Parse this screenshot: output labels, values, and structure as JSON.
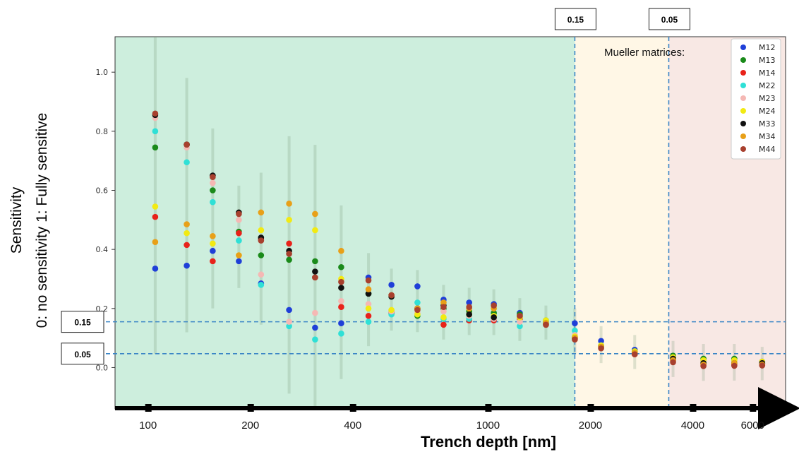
{
  "chart_data": {
    "type": "scatter",
    "xlabel": "Trench depth [nm]",
    "ylabel_line1": "Sensitivity",
    "ylabel_line2": "0: no sensitivity  1: Fully sensitive",
    "x_scale": "log",
    "xlim": [
      80,
      7500
    ],
    "ylim": [
      -0.14,
      1.12
    ],
    "y_ticks": [
      "0.0",
      "0.2",
      "0.4",
      "0.6",
      "0.8",
      "1.0"
    ],
    "x_ticks": [
      "100",
      "200",
      "400",
      "1000",
      "2000",
      "4000",
      "6000"
    ],
    "legend_title": "Mueller matrices:",
    "legend_position": "top-right",
    "regions": [
      {
        "from": 80,
        "to": 1800,
        "color": "#cdeedd"
      },
      {
        "from": 1800,
        "to": 3400,
        "color": "#fff7e6"
      },
      {
        "from": 3400,
        "to": 7500,
        "color": "#f8e8e4"
      }
    ],
    "thresholds": {
      "horizontal": [
        {
          "label": "0.15",
          "y": 0.155
        },
        {
          "label": "0.05",
          "y": 0.047
        }
      ],
      "vertical": [
        {
          "label": "0.15",
          "x": 1800
        },
        {
          "label": "0.05",
          "x": 3400
        }
      ]
    },
    "x": [
      105,
      130,
      155,
      185,
      215,
      260,
      310,
      370,
      445,
      520,
      620,
      740,
      880,
      1040,
      1240,
      1480,
      1800,
      2150,
      2700,
      3500,
      4300,
      5300,
      6400
    ],
    "series": [
      {
        "name": "M12",
        "color": "#1f3fd8",
        "values": [
          0.335,
          0.345,
          0.395,
          0.36,
          0.285,
          0.195,
          0.135,
          0.15,
          0.305,
          0.28,
          0.275,
          0.23,
          0.22,
          0.215,
          0.185,
          0.16,
          0.15,
          0.09,
          0.06,
          0.035,
          0.025,
          0.025,
          0.02
        ]
      },
      {
        "name": "M13",
        "color": "#1a8a1a",
        "values": [
          0.745,
          0.755,
          0.6,
          0.46,
          0.38,
          0.365,
          0.36,
          0.34,
          0.25,
          0.19,
          0.175,
          0.2,
          0.19,
          0.185,
          0.18,
          0.155,
          0.1,
          0.075,
          0.055,
          0.04,
          0.03,
          0.03,
          0.015
        ]
      },
      {
        "name": "M14",
        "color": "#e8221a",
        "values": [
          0.51,
          0.415,
          0.36,
          0.455,
          0.435,
          0.42,
          0.305,
          0.205,
          0.175,
          0.185,
          0.2,
          0.145,
          0.16,
          0.16,
          0.165,
          0.145,
          0.1,
          0.07,
          0.045,
          0.025,
          0.01,
          0.01,
          0.01
        ]
      },
      {
        "name": "M22",
        "color": "#2fe0d6",
        "values": [
          0.8,
          0.695,
          0.56,
          0.43,
          0.28,
          0.14,
          0.095,
          0.115,
          0.155,
          0.18,
          0.22,
          0.165,
          0.165,
          0.165,
          0.14,
          0.16,
          0.125,
          0.075,
          0.05,
          0.03,
          0.02,
          0.02,
          0.015
        ]
      },
      {
        "name": "M23",
        "color": "#f5b8b4",
        "values": [
          0.845,
          0.745,
          0.625,
          0.5,
          0.315,
          0.155,
          0.185,
          0.225,
          0.215,
          0.19,
          0.185,
          0.19,
          0.175,
          0.165,
          0.155,
          0.155,
          0.11,
          0.07,
          0.05,
          0.03,
          0.02,
          0.02,
          0.015
        ]
      },
      {
        "name": "M24",
        "color": "#f2ea12",
        "values": [
          0.545,
          0.455,
          0.42,
          0.38,
          0.465,
          0.5,
          0.465,
          0.3,
          0.2,
          0.195,
          0.18,
          0.17,
          0.18,
          0.175,
          0.17,
          0.16,
          0.105,
          0.075,
          0.055,
          0.035,
          0.025,
          0.025,
          0.02
        ]
      },
      {
        "name": "M33",
        "color": "#111111",
        "values": [
          0.855,
          0.755,
          0.65,
          0.525,
          0.44,
          0.395,
          0.325,
          0.27,
          0.25,
          0.24,
          0.2,
          0.21,
          0.18,
          0.17,
          0.175,
          0.15,
          0.1,
          0.07,
          0.05,
          0.03,
          0.015,
          0.015,
          0.015
        ]
      },
      {
        "name": "M34",
        "color": "#e8a018",
        "values": [
          0.425,
          0.485,
          0.445,
          0.38,
          0.525,
          0.555,
          0.52,
          0.395,
          0.265,
          0.245,
          0.2,
          0.22,
          0.2,
          0.2,
          0.175,
          0.15,
          0.1,
          0.07,
          0.05,
          0.025,
          0.01,
          0.015,
          0.01
        ]
      },
      {
        "name": "M44",
        "color": "#a8402e",
        "values": [
          0.86,
          0.755,
          0.645,
          0.52,
          0.43,
          0.385,
          0.305,
          0.29,
          0.295,
          0.245,
          0.195,
          0.205,
          0.205,
          0.21,
          0.175,
          0.145,
          0.095,
          0.065,
          0.045,
          0.018,
          0.005,
          0.006,
          0.007
        ]
      }
    ]
  }
}
